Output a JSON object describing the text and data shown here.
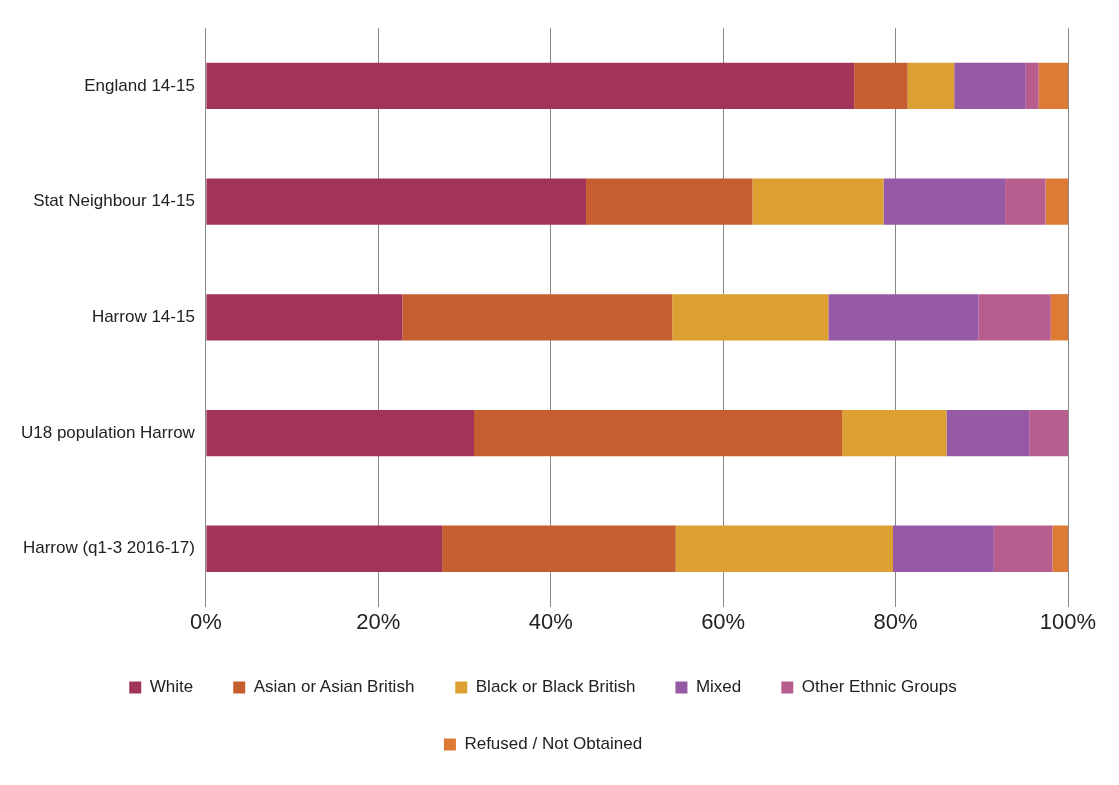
{
  "chart_data": {
    "type": "bar",
    "orientation": "horizontal",
    "stacked": true,
    "categories": [
      "England 14-15",
      "Stat Neighbour 14-15",
      "Harrow 14-15",
      "U18 population Harrow",
      "Harrow (q1-3 2016-17)"
    ],
    "series": [
      {
        "name": "White",
        "color": "#a13457",
        "values": [
          75.2,
          44.1,
          22.8,
          31.1,
          27.4
        ]
      },
      {
        "name": "Asian or Asian British",
        "color": "#c55f2f",
        "values": [
          6.2,
          19.3,
          31.3,
          42.7,
          27.1
        ]
      },
      {
        "name": "Black or Black British",
        "color": "#dca032",
        "values": [
          5.4,
          15.2,
          18.1,
          12.1,
          25.2
        ]
      },
      {
        "name": "Mixed",
        "color": "#9659a5",
        "values": [
          8.3,
          14.1,
          17.4,
          9.6,
          11.7
        ]
      },
      {
        "name": "Other Ethnic Groups",
        "color": "#b75e8e",
        "values": [
          1.5,
          4.7,
          8.4,
          4.5,
          6.8
        ]
      },
      {
        "name": "Refused / Not Obtained",
        "color": "#dd7a33",
        "values": [
          3.4,
          2.6,
          2.0,
          0,
          1.8
        ]
      }
    ],
    "xlim": [
      0,
      100
    ],
    "xticks": [
      {
        "value": 0,
        "label": "0%"
      },
      {
        "value": 20,
        "label": "20%"
      },
      {
        "value": 40,
        "label": "40%"
      },
      {
        "value": 60,
        "label": "60%"
      },
      {
        "value": 80,
        "label": "80%"
      },
      {
        "value": 100,
        "label": "100%"
      }
    ],
    "grid": "x",
    "legend": "bottom"
  }
}
